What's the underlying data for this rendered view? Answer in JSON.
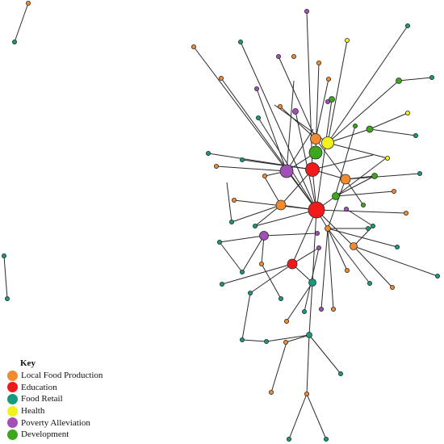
{
  "legend": {
    "title": "Key",
    "items": [
      {
        "label": "Local Food Production",
        "color": "#F28A30"
      },
      {
        "label": "Education",
        "color": "#F01A1A"
      },
      {
        "label": "Food Retail",
        "color": "#169A7E"
      },
      {
        "label": "Health",
        "color": "#F2F21A"
      },
      {
        "label": "Poverty Alleviation",
        "color": "#A24FB8"
      },
      {
        "label": "Development",
        "color": "#3CA61E"
      }
    ]
  }
}
